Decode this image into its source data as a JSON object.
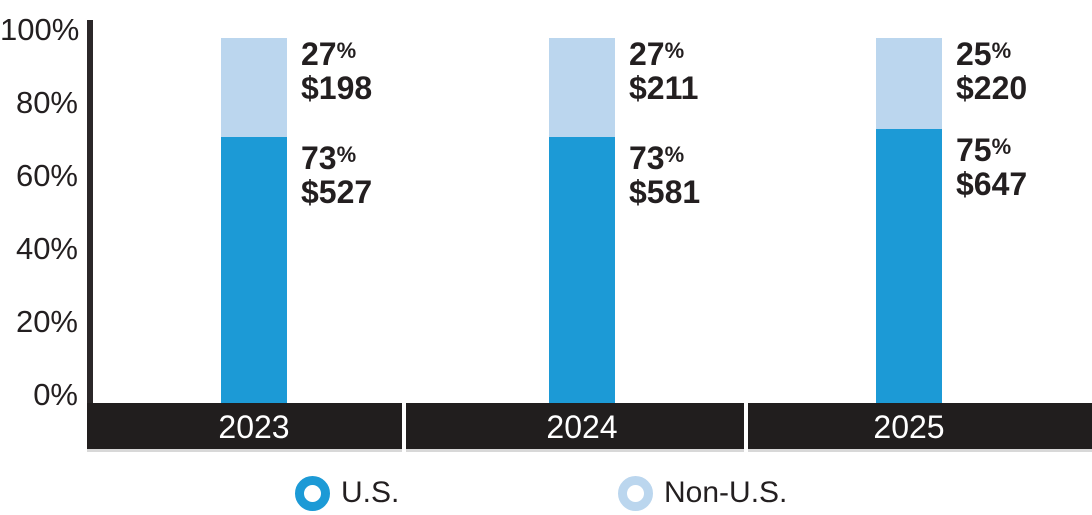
{
  "chart_data": {
    "type": "bar",
    "stacked": true,
    "title": "",
    "categories": [
      "2023",
      "2024",
      "2025"
    ],
    "series": [
      {
        "name": "U.S.",
        "color": "#1C9AD6",
        "values": [
          73,
          73,
          75
        ],
        "pct_labels": [
          "73%",
          "73%",
          "75%"
        ],
        "amount_labels": [
          "$527",
          "$581",
          "$647"
        ]
      },
      {
        "name": "Non-U.S.",
        "color": "#BBD6EE",
        "values": [
          27,
          27,
          25
        ],
        "pct_labels": [
          "27%",
          "27%",
          "25%"
        ],
        "amount_labels": [
          "$198",
          "$211",
          "$220"
        ]
      }
    ],
    "yticks": [
      "100%",
      "80%",
      "60%",
      "40%",
      "20%",
      "0%"
    ],
    "ylim": [
      0,
      100
    ],
    "grid": false,
    "legend_position": "bottom",
    "legend_labels": [
      "U.S.",
      "Non-U.S."
    ]
  },
  "colors": {
    "us_blue": "#1C9AD6",
    "non_us_blue": "#BBD6EE",
    "axis_band_black": "#211E1E",
    "axis_line": "#2B2829",
    "text": "#231F20",
    "year_label_white": "#FFFFFF"
  }
}
